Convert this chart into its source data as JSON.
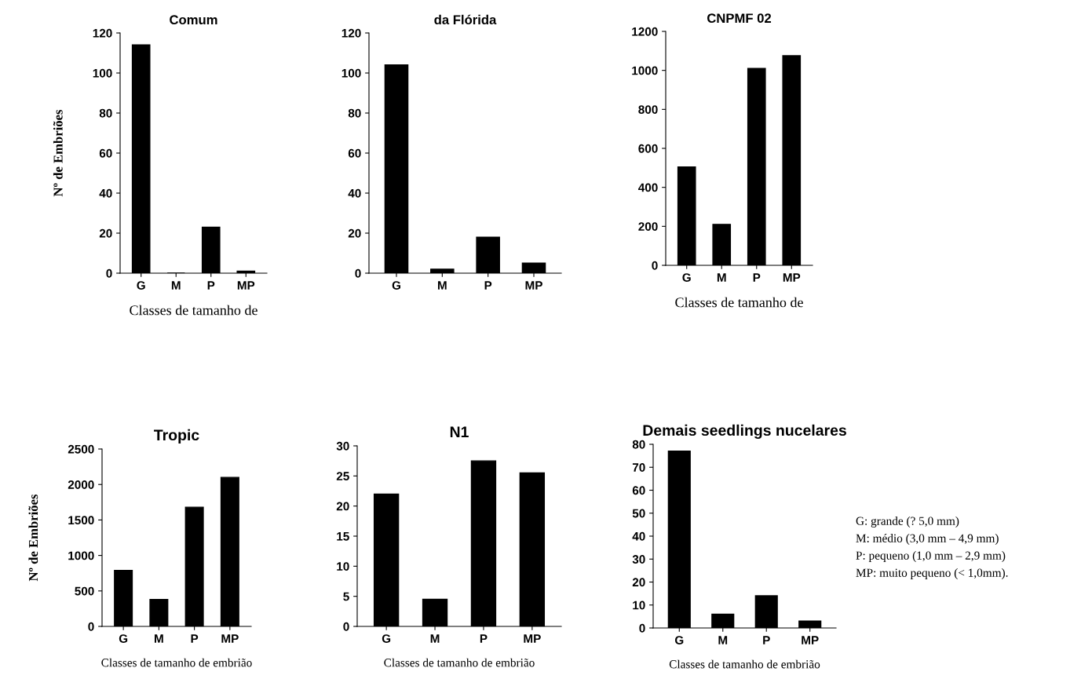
{
  "chart_data": [
    {
      "type": "bar",
      "title": "Comum",
      "ylabel": "Nº de Embriões",
      "xlabel": "Classes de tamanho de",
      "categories": [
        "G",
        "M",
        "P",
        "MP"
      ],
      "values": [
        114,
        0,
        23,
        1
      ],
      "color": "#000000",
      "ylim": [
        0,
        120
      ],
      "yticks": [
        0,
        20,
        40,
        60,
        80,
        100,
        120
      ]
    },
    {
      "type": "bar",
      "title": "da Flórida",
      "categories": [
        "G",
        "M",
        "P",
        "MP"
      ],
      "values": [
        104,
        2,
        18,
        5
      ],
      "color": "#000000",
      "ylim": [
        0,
        120
      ],
      "yticks": [
        0,
        20,
        40,
        60,
        80,
        100,
        120
      ]
    },
    {
      "type": "bar",
      "title": "CNPMF 02",
      "xlabel": "Classes de tamanho de",
      "categories": [
        "G",
        "M",
        "P",
        "MP"
      ],
      "values": [
        505,
        210,
        1010,
        1075
      ],
      "color": "#000000",
      "ylim": [
        0,
        1200
      ],
      "yticks": [
        0,
        200,
        400,
        600,
        800,
        1000,
        1200
      ]
    },
    {
      "type": "bar",
      "title": "Tropic",
      "ylabel": "Nº de Embriões",
      "xlabel": "Classes de tamanho de embrião",
      "categories": [
        "G",
        "M",
        "P",
        "MP"
      ],
      "values": [
        790,
        380,
        1680,
        2100
      ],
      "color": "#000000",
      "ylim": [
        0,
        2500
      ],
      "yticks": [
        0,
        500,
        1000,
        1500,
        2000,
        2500
      ]
    },
    {
      "type": "bar",
      "title": "N1",
      "xlabel": "Classes de tamanho de embrião",
      "categories": [
        "G",
        "M",
        "P",
        "MP"
      ],
      "values": [
        22,
        4.5,
        27.5,
        25.5
      ],
      "color": "#000000",
      "ylim": [
        0,
        30
      ],
      "yticks": [
        0,
        5,
        10,
        15,
        20,
        25,
        30
      ]
    },
    {
      "type": "bar",
      "title": "Demais seedlings nucelares",
      "xlabel": "Classes de tamanho de embrião",
      "categories": [
        "G",
        "M",
        "P",
        "MP"
      ],
      "values": [
        77,
        6,
        14,
        3
      ],
      "color": "#000000",
      "ylim": [
        0,
        80
      ],
      "yticks": [
        0,
        10,
        20,
        30,
        40,
        50,
        60,
        70,
        80
      ],
      "annotations": [
        "G: grande (? 5,0 mm)",
        "M: médio (3,0 mm – 4,9 mm)",
        "P: pequeno (1,0 mm – 2,9 mm)",
        "MP: muito pequeno (< 1,0mm)."
      ]
    }
  ]
}
